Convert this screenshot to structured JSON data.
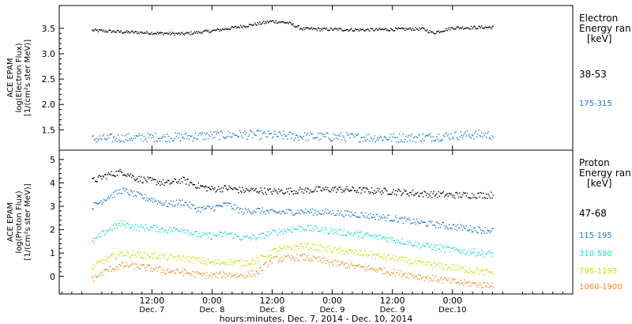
{
  "chart_data": [
    {
      "type": "scatter",
      "panel": "electron",
      "ylabel_lines": [
        "ACE EPAM",
        "log(Electron Flux)",
        "[1/(cm²s ster MeV)]"
      ],
      "ylim": [
        1.1,
        3.95
      ],
      "yticks": [
        1.5,
        2.0,
        2.5,
        3.0,
        3.5
      ],
      "ytick_labels": [
        "1.5",
        "2.0",
        "2.5",
        "3.0",
        "3.5"
      ],
      "legend_title_lines": [
        "Electron",
        "Energy ran",
        "[keV]"
      ],
      "series": [
        {
          "name": "38-53",
          "color": "#000000",
          "x": [
            0,
            6,
            12,
            18,
            24,
            30,
            33,
            36,
            39,
            42,
            48,
            54,
            60,
            66,
            68,
            72,
            78,
            80
          ],
          "y": [
            3.47,
            3.44,
            3.42,
            3.4,
            3.46,
            3.55,
            3.6,
            3.65,
            3.62,
            3.5,
            3.49,
            3.48,
            3.49,
            3.5,
            3.42,
            3.52,
            3.53,
            3.53
          ]
        },
        {
          "name": "175-315",
          "color": "#1f78c8",
          "x": [
            0,
            6,
            12,
            18,
            24,
            30,
            36,
            42,
            48,
            54,
            60,
            66,
            72,
            78,
            80
          ],
          "y": [
            1.33,
            1.35,
            1.36,
            1.37,
            1.4,
            1.42,
            1.4,
            1.38,
            1.37,
            1.36,
            1.35,
            1.36,
            1.4,
            1.42,
            1.4
          ]
        }
      ]
    },
    {
      "type": "scatter",
      "panel": "proton",
      "ylabel_lines": [
        "ACE EPAM",
        "log(Proton Flux)",
        "[1/(cm²s ster MeV)]"
      ],
      "ylim": [
        -0.75,
        5.4
      ],
      "yticks": [
        0,
        1,
        2,
        3,
        4,
        5
      ],
      "ytick_labels": [
        "0",
        "1",
        "2",
        "3",
        "4",
        "5"
      ],
      "legend_title_lines": [
        "Proton",
        "Energy ran",
        "[keV]"
      ],
      "series": [
        {
          "name": "47-68",
          "color": "#000000",
          "x": [
            0,
            3,
            6,
            9,
            12,
            15,
            18,
            21,
            24,
            27,
            30,
            33,
            36,
            42,
            48,
            54,
            60,
            66,
            72,
            78,
            80
          ],
          "y": [
            4.1,
            4.35,
            4.5,
            4.2,
            4.1,
            4.0,
            4.15,
            3.9,
            3.75,
            3.8,
            3.7,
            3.7,
            3.65,
            3.7,
            3.75,
            3.7,
            3.65,
            3.55,
            3.5,
            3.5,
            3.5
          ]
        },
        {
          "name": "115-195",
          "color": "#1f78c8",
          "x": [
            0,
            3,
            6,
            9,
            12,
            15,
            18,
            21,
            24,
            27,
            30,
            33,
            36,
            42,
            48,
            54,
            60,
            66,
            72,
            78,
            80
          ],
          "y": [
            3.0,
            3.4,
            3.7,
            3.5,
            3.3,
            3.1,
            3.2,
            2.9,
            2.95,
            3.1,
            2.8,
            2.85,
            2.75,
            2.8,
            2.75,
            2.65,
            2.5,
            2.3,
            2.15,
            2.0,
            2.0
          ]
        },
        {
          "name": "310-580",
          "color": "#22d8d0",
          "x": [
            0,
            3,
            6,
            9,
            12,
            15,
            18,
            21,
            24,
            27,
            30,
            33,
            36,
            42,
            48,
            54,
            60,
            66,
            72,
            78,
            80
          ],
          "y": [
            1.5,
            2.0,
            2.3,
            2.1,
            2.1,
            2.0,
            2.05,
            1.8,
            1.75,
            1.85,
            1.65,
            1.7,
            1.9,
            2.1,
            1.95,
            1.8,
            1.6,
            1.35,
            1.15,
            1.0,
            1.0
          ]
        },
        {
          "name": "795-1193",
          "color": "#c8e000",
          "x": [
            0,
            3,
            6,
            9,
            12,
            15,
            18,
            21,
            24,
            27,
            30,
            33,
            36,
            42,
            48,
            54,
            60,
            66,
            72,
            78,
            80
          ],
          "y": [
            0.4,
            0.8,
            1.0,
            0.95,
            0.9,
            0.85,
            0.8,
            0.7,
            0.6,
            0.65,
            0.6,
            0.7,
            1.1,
            1.35,
            1.15,
            1.0,
            0.8,
            0.55,
            0.4,
            0.2,
            0.2
          ]
        },
        {
          "name": "1060-1900",
          "color": "#f08c20",
          "x": [
            0,
            3,
            6,
            9,
            12,
            15,
            18,
            21,
            24,
            27,
            30,
            33,
            36,
            42,
            48,
            54,
            60,
            66,
            72,
            78,
            80
          ],
          "y": [
            -0.1,
            0.3,
            0.5,
            0.45,
            0.35,
            0.25,
            0.2,
            0.1,
            0.05,
            0.1,
            0.05,
            0.2,
            0.75,
            0.85,
            0.6,
            0.4,
            0.2,
            0.0,
            -0.2,
            -0.35,
            -0.3
          ]
        }
      ]
    }
  ],
  "x_axis": {
    "xlim": [
      -6.5,
      96
    ],
    "ticks": [
      12,
      24,
      36,
      48,
      60,
      72
    ],
    "tick_labels_top": [
      "12:00",
      "0:00",
      "12:00",
      "0:00",
      "12:00",
      "0:00"
    ],
    "tick_labels_bottom": [
      "Dec. 7",
      "Dec. 8",
      "Dec. 8",
      "Dec. 9",
      "Dec. 9",
      "Dec.10"
    ],
    "title": "hours:minutes, Dec. 7, 2014 - Dec. 10, 2014"
  }
}
